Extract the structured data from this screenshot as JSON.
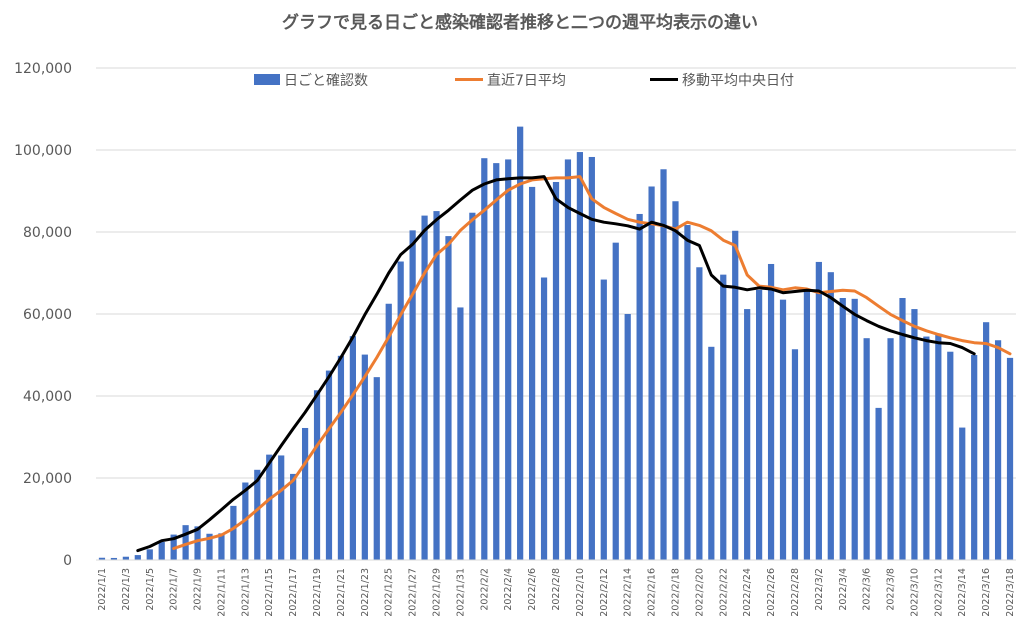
{
  "chart_data": {
    "type": "bar",
    "title": "グラフで見る日ごと感染確認者推移と二つの週平均表示の違い",
    "xlabel": "",
    "ylabel": "",
    "ylim": [
      0,
      120000
    ],
    "yticks": [
      0,
      20000,
      40000,
      60000,
      80000,
      100000,
      120000
    ],
    "ytick_labels": [
      "0",
      "20,000",
      "40,000",
      "60,000",
      "80,000",
      "100,000",
      "120,000"
    ],
    "grid": true,
    "legend_position": "top",
    "categories": [
      "2022/1/1",
      "2022/1/2",
      "2022/1/3",
      "2022/1/4",
      "2022/1/5",
      "2022/1/6",
      "2022/1/7",
      "2022/1/8",
      "2022/1/9",
      "2022/1/10",
      "2022/1/11",
      "2022/1/12",
      "2022/1/13",
      "2022/1/14",
      "2022/1/15",
      "2022/1/16",
      "2022/1/17",
      "2022/1/18",
      "2022/1/19",
      "2022/1/20",
      "2022/1/21",
      "2022/1/22",
      "2022/1/23",
      "2022/1/24",
      "2022/1/25",
      "2022/1/26",
      "2022/1/27",
      "2022/1/28",
      "2022/1/29",
      "2022/1/30",
      "2022/1/31",
      "2022/2/1",
      "2022/2/2",
      "2022/2/3",
      "2022/2/4",
      "2022/2/5",
      "2022/2/6",
      "2022/2/7",
      "2022/2/8",
      "2022/2/9",
      "2022/2/10",
      "2022/2/11",
      "2022/2/12",
      "2022/2/13",
      "2022/2/14",
      "2022/2/15",
      "2022/2/16",
      "2022/2/17",
      "2022/2/18",
      "2022/2/19",
      "2022/2/20",
      "2022/2/21",
      "2022/2/22",
      "2022/2/23",
      "2022/2/24",
      "2022/2/25",
      "2022/2/26",
      "2022/2/27",
      "2022/2/28",
      "2022/3/1",
      "2022/3/2",
      "2022/3/3",
      "2022/3/4",
      "2022/3/5",
      "2022/3/6",
      "2022/3/7",
      "2022/3/8",
      "2022/3/9",
      "2022/3/10",
      "2022/3/11",
      "2022/3/12",
      "2022/3/13",
      "2022/3/14",
      "2022/3/15",
      "2022/3/16",
      "2022/3/17",
      "2022/3/18"
    ],
    "xtick_labels": [
      "2022/1/1",
      "2022/1/3",
      "2022/1/5",
      "2022/1/7",
      "2022/1/9",
      "2022/1/11",
      "2022/1/13",
      "2022/1/15",
      "2022/1/17",
      "2022/1/19",
      "2022/1/21",
      "2022/1/23",
      "2022/1/25",
      "2022/1/27",
      "2022/1/29",
      "2022/1/31",
      "2022/2/2",
      "2022/2/4",
      "2022/2/6",
      "2022/2/8",
      "2022/2/10",
      "2022/2/12",
      "2022/2/14",
      "2022/2/16",
      "2022/2/18",
      "2022/2/20",
      "2022/2/22",
      "2022/2/24",
      "2022/2/26",
      "2022/2/28",
      "2022/3/2",
      "2022/3/4",
      "2022/3/6",
      "2022/3/8",
      "2022/3/10",
      "2022/3/12",
      "2022/3/14",
      "2022/3/16",
      "2022/3/18"
    ],
    "series": [
      {
        "name": "日ごと確認数",
        "type": "bar",
        "color": "#4472c4",
        "values": [
          550,
          500,
          800,
          1200,
          2600,
          4400,
          6200,
          8500,
          8200,
          6400,
          6500,
          13200,
          18900,
          22000,
          25700,
          25500,
          21000,
          32200,
          41400,
          46200,
          49800,
          54600,
          50100,
          44600,
          62500,
          72800,
          80400,
          84000,
          85100,
          79000,
          61600,
          84700,
          98000,
          96800,
          97700,
          105700,
          91000,
          68900,
          92200,
          97700,
          99500,
          98300,
          68400,
          77400,
          60000,
          84400,
          91100,
          95300,
          87500,
          81700,
          71400,
          52000,
          69600,
          80300,
          61200,
          65900,
          72200,
          63500,
          51400,
          65900,
          72700,
          70200,
          63900,
          63700,
          54100,
          37100,
          54100,
          63900,
          61200,
          54500,
          55200,
          50800,
          32300,
          50000,
          58000,
          53600,
          49300
        ]
      },
      {
        "name": "直近7日平均",
        "type": "line",
        "color": "#ed7d31",
        "values": [
          null,
          null,
          null,
          null,
          null,
          null,
          2800,
          3800,
          4700,
          5300,
          6100,
          7700,
          9800,
          12300,
          14800,
          17000,
          19400,
          23600,
          27900,
          32000,
          36000,
          40300,
          44700,
          49400,
          54400,
          59800,
          64800,
          70000,
          74500,
          77000,
          80400,
          83000,
          85300,
          87800,
          90200,
          91700,
          92700,
          93000,
          93200,
          93200,
          93500,
          88100,
          86000,
          84500,
          83100,
          82400,
          82000,
          81500,
          80700,
          82400,
          81600,
          80300,
          78000,
          76700,
          69500,
          66800,
          66500,
          65900,
          66400,
          66100,
          65200,
          65500,
          65800,
          65600,
          64000,
          61900,
          59900,
          58400,
          57000,
          55900,
          55000,
          54200,
          53500,
          53000,
          52800,
          51800,
          50300
        ]
      },
      {
        "name": "移動平均中央日付",
        "type": "line",
        "color": "#000000",
        "values": [
          null,
          null,
          null,
          2300,
          3300,
          4700,
          5200,
          6300,
          7500,
          9800,
          12300,
          14800,
          17000,
          19400,
          23600,
          27900,
          32000,
          36000,
          40300,
          44700,
          49400,
          54400,
          59800,
          64800,
          70000,
          74500,
          77000,
          80400,
          83000,
          85300,
          87800,
          90200,
          91700,
          92700,
          93000,
          93200,
          93200,
          93500,
          88100,
          86000,
          84500,
          83100,
          82400,
          82000,
          81500,
          80700,
          82400,
          81600,
          80300,
          78000,
          76700,
          69500,
          66800,
          66500,
          65900,
          66400,
          66100,
          65200,
          65500,
          65800,
          65600,
          64000,
          61900,
          59900,
          58400,
          57000,
          55900,
          55000,
          54200,
          53500,
          53000,
          52800,
          51800,
          50300,
          null,
          null,
          null
        ]
      }
    ]
  }
}
